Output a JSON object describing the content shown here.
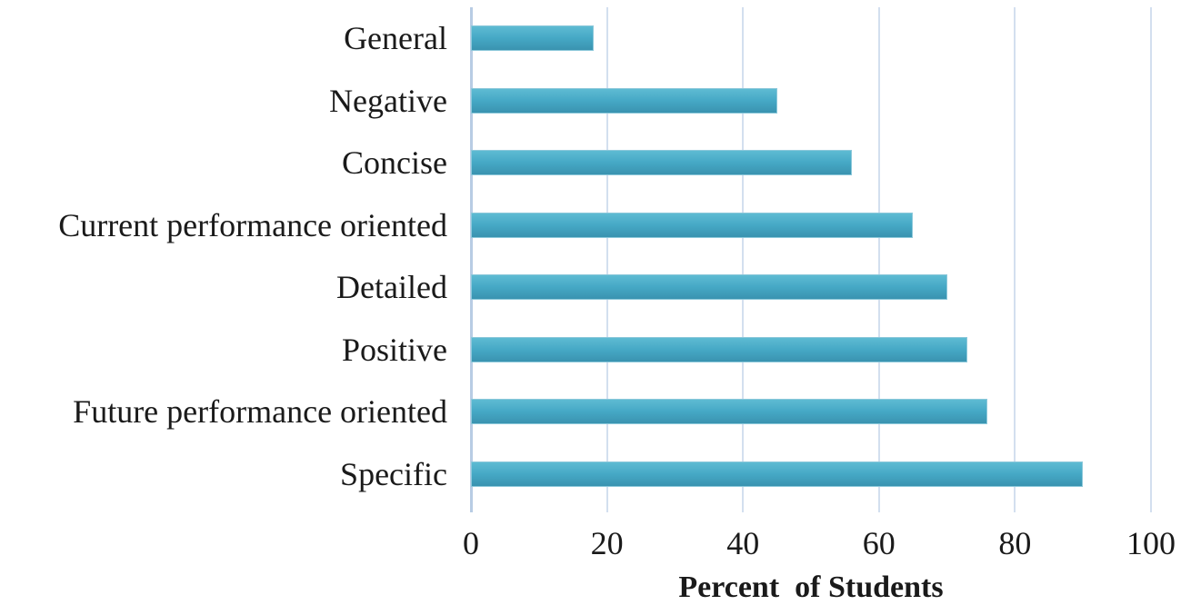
{
  "chart_data": {
    "type": "bar",
    "orientation": "horizontal",
    "title": "",
    "xlabel": "Percent  of Students",
    "ylabel": "",
    "categories": [
      "General",
      "Negative",
      "Concise",
      "Current performance oriented",
      "Detailed",
      "Positive",
      "Future performance oriented",
      "Specific"
    ],
    "values": [
      18,
      45,
      56,
      65,
      70,
      73,
      76,
      90
    ],
    "xlim": [
      0,
      100
    ],
    "xticks": [
      0,
      20,
      40,
      60,
      80,
      100
    ],
    "grid": true,
    "legend": false,
    "bar_color": "#46a9c6"
  },
  "colors": {
    "bar_fill_top": "#5ebbd3",
    "bar_fill_mid": "#46a9c6",
    "bar_fill_bottom": "#3a93b0",
    "bar_border": "#8cc8da",
    "gridline": "#d3dfef",
    "axis_line": "#b8cce4",
    "text": "#1a1a1a",
    "background": "#ffffff"
  }
}
